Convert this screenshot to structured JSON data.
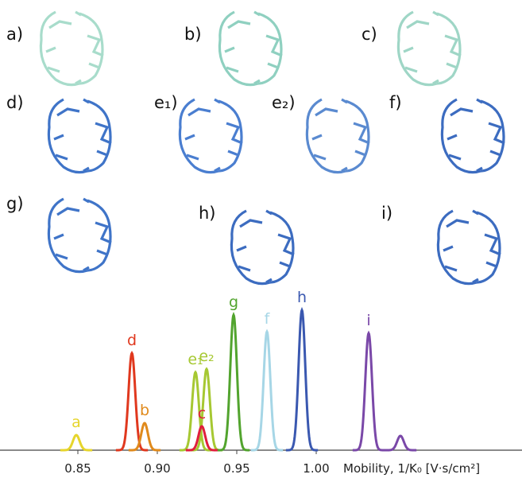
{
  "panels": [
    "a)",
    "b)",
    "c)",
    "d)",
    "e₁)",
    "e₂)",
    "f)",
    "g)",
    "h)",
    "i)"
  ],
  "chart_data": {
    "type": "peaks",
    "x_label": "Mobility, 1/K₀ [V·s/cm²]",
    "xlim": [
      0.801,
      1.1295
    ],
    "xticks": [
      0.85,
      {
        "value": 0.9,
        "label": "0.90"
      },
      0.95,
      {
        "value": 1.0,
        "label": "1.00"
      }
    ],
    "ylim": [
      0,
      200
    ],
    "peak_width": 0.0021,
    "series": [
      {
        "name": "a",
        "color": "#e6d52c",
        "peaks": [
          {
            "center": 0.849,
            "height": 19
          }
        ]
      },
      {
        "name": "d",
        "color": "#e0381e",
        "peaks": [
          {
            "center": 0.884,
            "height": 122
          }
        ]
      },
      {
        "name": "b",
        "color": "#e08a1c",
        "peaks": [
          {
            "center": 0.892,
            "height": 34
          }
        ]
      },
      {
        "name": "e₁",
        "color": "#a6c832",
        "peaks": [
          {
            "center": 0.924,
            "height": 98
          }
        ]
      },
      {
        "name": "e₂",
        "color": "#a6c832",
        "peaks": [
          {
            "center": 0.931,
            "height": 102
          }
        ]
      },
      {
        "name": "c",
        "color": "#e01e3c",
        "peaks": [
          {
            "center": 0.928,
            "height": 30
          }
        ]
      },
      {
        "name": "g",
        "color": "#52a42e",
        "peaks": [
          {
            "center": 0.948,
            "height": 170
          }
        ]
      },
      {
        "name": "f",
        "color": "#a6d6e6",
        "peaks": [
          {
            "center": 0.969,
            "height": 149
          }
        ]
      },
      {
        "name": "h",
        "color": "#3a58b0",
        "peaks": [
          {
            "center": 0.991,
            "height": 176
          }
        ]
      },
      {
        "name": "i",
        "color": "#7a48a8",
        "peaks": [
          {
            "center": 1.033,
            "height": 147
          },
          {
            "center": 1.053,
            "height": 18
          }
        ]
      }
    ]
  }
}
